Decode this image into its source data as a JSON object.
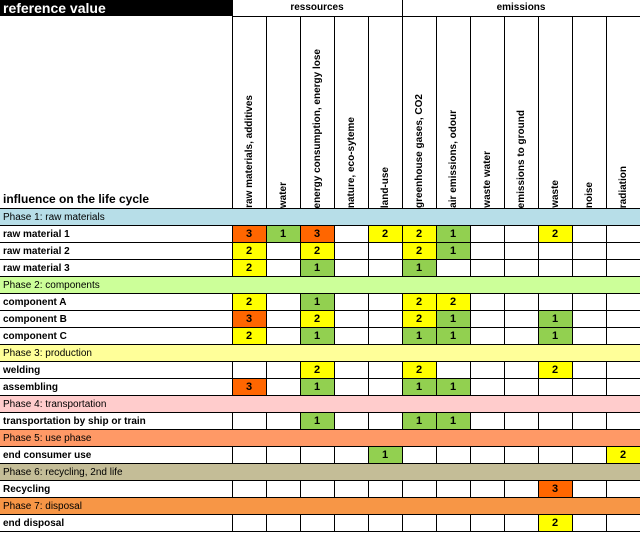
{
  "header": {
    "reference_value": "reference value",
    "group_resources": "ressources",
    "group_emissions": "emissions",
    "lifecycle_label": "influence on the life cycle"
  },
  "columns": [
    "raw materials, additives",
    "water",
    "energy consumption, energy lose",
    "nature, eco-syteme",
    "land-use",
    "greenhouse gases, CO2",
    "air emissions, odour",
    "waste water",
    "emissions to ground",
    "waste",
    "noise",
    "radiation"
  ],
  "colors": {
    "1": "#92D050",
    "2": "#FFFF00",
    "3": "#FF6600",
    "header_black": "#000000"
  },
  "phases": [
    {
      "title": "Phase 1: raw materials",
      "color": "#B7DEE8",
      "items": [
        {
          "label": "raw material 1",
          "values": [
            "3",
            "1",
            "3",
            "",
            "2",
            "2",
            "1",
            "",
            "",
            "2",
            "",
            ""
          ]
        },
        {
          "label": "raw material 2",
          "values": [
            "2",
            "",
            "2",
            "",
            "",
            "2",
            "1",
            "",
            "",
            "",
            "",
            ""
          ]
        },
        {
          "label": "raw material 3",
          "values": [
            "2",
            "",
            "1",
            "",
            "",
            "1",
            "",
            "",
            "",
            "",
            "",
            ""
          ]
        }
      ]
    },
    {
      "title": "Phase 2: components",
      "color": "#CCFF99",
      "items": [
        {
          "label": "component A",
          "values": [
            "2",
            "",
            "1",
            "",
            "",
            "2",
            "2",
            "",
            "",
            "",
            "",
            ""
          ]
        },
        {
          "label": "component B",
          "values": [
            "3",
            "",
            "2",
            "",
            "",
            "2",
            "1",
            "",
            "",
            "1",
            "",
            ""
          ]
        },
        {
          "label": "component C",
          "values": [
            "2",
            "",
            "1",
            "",
            "",
            "1",
            "1",
            "",
            "",
            "1",
            "",
            ""
          ]
        }
      ]
    },
    {
      "title": "Phase 3: production",
      "color": "#FFFF99",
      "items": [
        {
          "label": "welding",
          "values": [
            "",
            "",
            "2",
            "",
            "",
            "2",
            "",
            "",
            "",
            "2",
            "",
            ""
          ]
        },
        {
          "label": "assembling",
          "values": [
            "3",
            "",
            "1",
            "",
            "",
            "1",
            "1",
            "",
            "",
            "",
            "",
            ""
          ]
        }
      ]
    },
    {
      "title": "Phase 4: transportation",
      "color": "#FFCCCC",
      "items": [
        {
          "label": "transportation by ship or train",
          "values": [
            "",
            "",
            "1",
            "",
            "",
            "1",
            "1",
            "",
            "",
            "",
            "",
            ""
          ]
        }
      ]
    },
    {
      "title": "Phase 5: use phase",
      "color": "#FF9966",
      "items": [
        {
          "label": "end consumer use",
          "values": [
            "",
            "",
            "",
            "",
            "1",
            "",
            "",
            "",
            "",
            "",
            "",
            "2"
          ]
        }
      ]
    },
    {
      "title": "Phase 6: recycling, 2nd life",
      "color": "#C4BD97",
      "items": [
        {
          "label": "Recycling",
          "values": [
            "",
            "",
            "",
            "",
            "",
            "",
            "",
            "",
            "",
            "3",
            "",
            ""
          ]
        }
      ]
    },
    {
      "title": "Phase 7: disposal",
      "color": "#F79646",
      "items": [
        {
          "label": "end disposal",
          "values": [
            "",
            "",
            "",
            "",
            "",
            "",
            "",
            "",
            "",
            "2",
            "",
            ""
          ]
        }
      ]
    }
  ]
}
